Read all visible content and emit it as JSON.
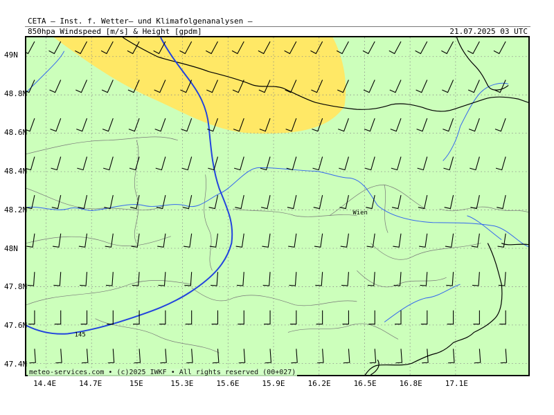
{
  "header": {
    "title": "CETA – Inst. f. Wetter– und Klimafolgenanalysen –",
    "subtitle": "850hpa Windspeed [m/s] & Height [gpdm]",
    "datetime": "21.07.2025 03 UTC"
  },
  "map": {
    "lon_range": [
      14.27,
      17.58
    ],
    "lat_range": [
      47.34,
      49.1
    ],
    "lat_labels": [
      {
        "text": "49N",
        "lat": 49.0
      },
      {
        "text": "48.8N",
        "lat": 48.8
      },
      {
        "text": "48.6N",
        "lat": 48.6
      },
      {
        "text": "48.4N",
        "lat": 48.4
      },
      {
        "text": "48.2N",
        "lat": 48.2
      },
      {
        "text": "48N",
        "lat": 48.0
      },
      {
        "text": "47.8N",
        "lat": 47.8
      },
      {
        "text": "47.6N",
        "lat": 47.6
      },
      {
        "text": "47.4N",
        "lat": 47.4
      }
    ],
    "lon_labels": [
      {
        "text": "14.4E",
        "lon": 14.4
      },
      {
        "text": "14.7E",
        "lon": 14.7
      },
      {
        "text": "15E",
        "lon": 15.0
      },
      {
        "text": "15.3E",
        "lon": 15.3
      },
      {
        "text": "15.6E",
        "lon": 15.6
      },
      {
        "text": "15.9E",
        "lon": 15.9
      },
      {
        "text": "16.2E",
        "lon": 16.2
      },
      {
        "text": "16.5E",
        "lon": 16.5
      },
      {
        "text": "16.8E",
        "lon": 16.8
      },
      {
        "text": "17.1E",
        "lon": 17.1
      }
    ],
    "city_label": "Wien",
    "contour_label": "145",
    "footer": "meteo-services.com • (c)2025 IWKF • All rights reserved (00+027)",
    "colors": {
      "background_fill": "#ccffbb",
      "high_wind_fill": "#ffe866",
      "contour": "#2244dd",
      "rivers": "#3366ee",
      "borders": "#000000",
      "regional_borders": "#777777",
      "grid": "#888888",
      "wind_barb": "#000000"
    }
  }
}
